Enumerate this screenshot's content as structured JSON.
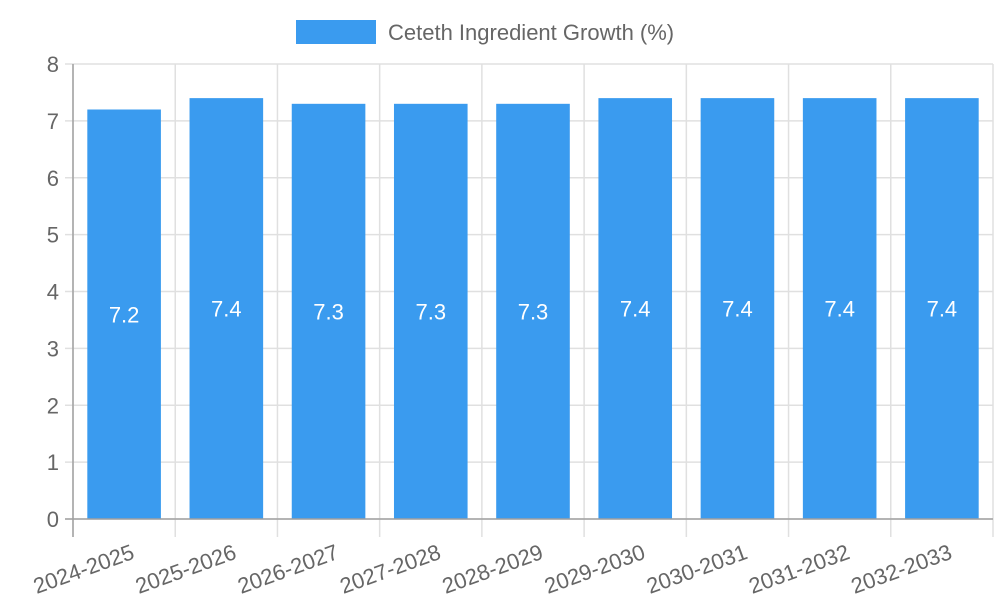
{
  "chart_data": {
    "type": "bar",
    "title": "",
    "legend": [
      {
        "label": "Ceteth Ingredient Growth (%)",
        "color": "#3a9bef"
      }
    ],
    "legend_position": "top",
    "categories": [
      "2024-2025",
      "2025-2026",
      "2026-2027",
      "2027-2028",
      "2028-2029",
      "2029-2030",
      "2030-2031",
      "2031-2032",
      "2032-2033"
    ],
    "series": [
      {
        "name": "Ceteth Ingredient Growth (%)",
        "values": [
          7.2,
          7.4,
          7.3,
          7.3,
          7.3,
          7.4,
          7.4,
          7.4,
          7.4
        ],
        "color": "#3a9bef"
      }
    ],
    "data_labels": [
      "7.2",
      "7.4",
      "7.3",
      "7.3",
      "7.3",
      "7.4",
      "7.4",
      "7.4",
      "7.4"
    ],
    "xlabel": "",
    "ylabel": "",
    "ylim": [
      0,
      8
    ],
    "yticks": [
      "0",
      "1",
      "2",
      "3",
      "4",
      "5",
      "6",
      "7",
      "8"
    ],
    "grid": true
  }
}
